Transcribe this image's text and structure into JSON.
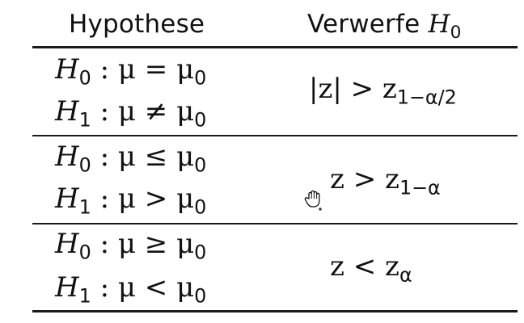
{
  "header": {
    "left": "Hypothese",
    "right_prefix": "Verwerfe ",
    "right_symbol": "H",
    "right_sub": "0"
  },
  "rows": [
    {
      "h0": {
        "sym": "H",
        "sub": "0",
        "rel": " : μ = μ",
        "rsub": "0"
      },
      "h1": {
        "sym": "H",
        "sub": "1",
        "rel": " : μ ≠ μ",
        "rsub": "0"
      },
      "reject": {
        "text": "|z| > z",
        "sub": "1−α/2"
      }
    },
    {
      "h0": {
        "sym": "H",
        "sub": "0",
        "rel": " : μ ≤ μ",
        "rsub": "0"
      },
      "h1": {
        "sym": "H",
        "sub": "1",
        "rel": " : μ > μ",
        "rsub": "0"
      },
      "reject": {
        "text": "z > z",
        "sub": "1−α"
      }
    },
    {
      "h0": {
        "sym": "H",
        "sub": "0",
        "rel": " : μ ≥ μ",
        "rsub": "0"
      },
      "h1": {
        "sym": "H",
        "sub": "1",
        "rel": " : μ < μ",
        "rsub": "0"
      },
      "reject": {
        "text": "z < z",
        "sub": "α"
      }
    }
  ],
  "cursor_icon": "grab-hand-icon"
}
